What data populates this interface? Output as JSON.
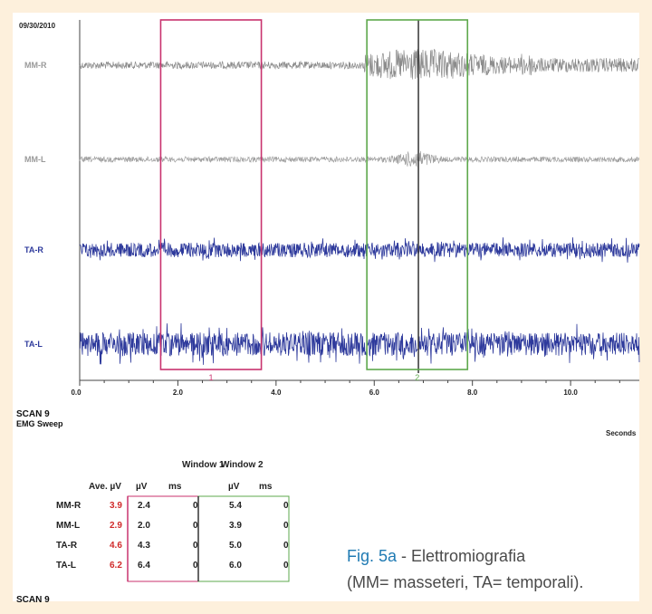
{
  "header": {
    "date": "09/30/2010"
  },
  "chart_data": {
    "type": "line",
    "xlabel": "Seconds",
    "xlim": [
      0,
      11.4
    ],
    "xticks": [
      {
        "value": 0,
        "label": "0.0"
      },
      {
        "value": 2,
        "label": "2.0"
      },
      {
        "value": 4,
        "label": "4.0"
      },
      {
        "value": 6,
        "label": "6.0"
      },
      {
        "value": 8,
        "label": "8.0"
      },
      {
        "value": 10,
        "label": "10.0"
      }
    ],
    "series": [
      {
        "name": "MM-R",
        "color": "#8c8c8c"
      },
      {
        "name": "MM-L",
        "color": "#a0a0a0"
      },
      {
        "name": "TA-R",
        "color": "#2e3a9c"
      },
      {
        "name": "TA-L",
        "color": "#2e3a9c"
      }
    ],
    "windows": [
      {
        "label": "1",
        "start": 1.65,
        "end": 3.7,
        "color": "#c8326e"
      },
      {
        "label": "2",
        "start": 5.85,
        "end": 7.9,
        "color": "#5ea84c"
      }
    ],
    "marker_line": 6.9
  },
  "scan": {
    "title": "SCAN 9",
    "subtitle": "EMG Sweep",
    "bottom": "SCAN 9"
  },
  "table": {
    "window1_header": "Window 1",
    "window2_header": "Window 2",
    "col_ave": "Ave. µV",
    "col_uv": "µV",
    "col_ms": "ms",
    "rows": [
      {
        "name": "MM-R",
        "ave": "3.9",
        "w1_uv": "2.4",
        "w1_ms": "0",
        "w2_uv": "5.4",
        "w2_ms": "0"
      },
      {
        "name": "MM-L",
        "ave": "2.9",
        "w1_uv": "2.0",
        "w1_ms": "0",
        "w2_uv": "3.9",
        "w2_ms": "0"
      },
      {
        "name": "TA-R",
        "ave": "4.6",
        "w1_uv": "4.3",
        "w1_ms": "0",
        "w2_uv": "5.0",
        "w2_ms": "0"
      },
      {
        "name": "TA-L",
        "ave": "6.2",
        "w1_uv": "6.4",
        "w1_ms": "0",
        "w2_uv": "6.0",
        "w2_ms": "0"
      }
    ]
  },
  "caption": {
    "fig": "Fig. 5a",
    "line1": " - Elettromiografia",
    "line2": "(MM= masseteri, TA= temporali)."
  }
}
